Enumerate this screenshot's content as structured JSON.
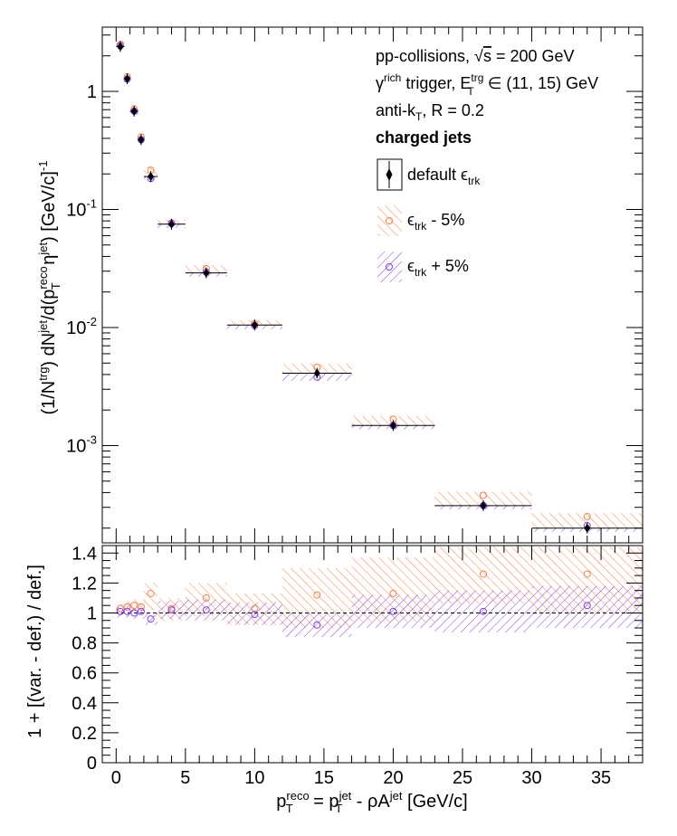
{
  "chart_data": [
    {
      "type": "scatter",
      "panel": "spectrum",
      "ylabel": "(1/N^{trg}) dN^{jet}/d(p_{T}^{reco} η^{jet}) [GeV/c]^{-1}",
      "yscale": "log",
      "ylim": [
        0.00015,
        3.5
      ],
      "xlim": [
        -1,
        38
      ],
      "ytick_labels": [
        "10^{-3}",
        "10^{-2}",
        "10^{-1}",
        "1"
      ],
      "legend_position": "top-right",
      "annotations": [
        "pp-collisions, √s = 200 GeV",
        "γ^{rich} trigger, E_{T}^{trg} ∈ (11, 15) GeV",
        "anti-k_{T}, R = 0.2",
        "charged jets"
      ],
      "series": [
        {
          "name": "default ϵ_{trk}",
          "color": "#000000",
          "marker": "diamond",
          "bins": [
            [
              0,
              0.6
            ],
            [
              0.6,
              1
            ],
            [
              1,
              1.6
            ],
            [
              1.6,
              2
            ],
            [
              2,
              3
            ],
            [
              3,
              5
            ],
            [
              5,
              8
            ],
            [
              8,
              12
            ],
            [
              12,
              17
            ],
            [
              17,
              23
            ],
            [
              23,
              30
            ],
            [
              30,
              38
            ]
          ],
          "x": [
            0.3,
            0.8,
            1.3,
            1.8,
            2.5,
            4,
            6.5,
            10,
            14.5,
            20,
            26.5,
            34
          ],
          "y": [
            2.4,
            1.28,
            0.68,
            0.39,
            0.19,
            0.075,
            0.029,
            0.0105,
            0.0041,
            0.00148,
            0.00031,
            0.0002
          ]
        },
        {
          "name": "ϵ_{trk} - 5%",
          "color": "#ff7f3f",
          "marker": "open-circle",
          "bins": [
            [
              0,
              0.6
            ],
            [
              0.6,
              1
            ],
            [
              1,
              1.6
            ],
            [
              1.6,
              2
            ],
            [
              2,
              3
            ],
            [
              3,
              5
            ],
            [
              5,
              8
            ],
            [
              8,
              12
            ],
            [
              12,
              17
            ],
            [
              17,
              23
            ],
            [
              23,
              30
            ],
            [
              30,
              38
            ]
          ],
          "x": [
            0.3,
            0.8,
            1.3,
            1.8,
            2.5,
            4,
            6.5,
            10,
            14.5,
            20,
            26.5,
            34
          ],
          "y": [
            2.5,
            1.33,
            0.71,
            0.41,
            0.215,
            0.077,
            0.0315,
            0.0108,
            0.0046,
            0.00167,
            0.00038,
            0.00025
          ]
        },
        {
          "name": "ϵ_{trk} + 5%",
          "color": "#7f3fff",
          "marker": "open-circle",
          "bins": [
            [
              0,
              0.6
            ],
            [
              0.6,
              1
            ],
            [
              1,
              1.6
            ],
            [
              1.6,
              2
            ],
            [
              2,
              3
            ],
            [
              3,
              5
            ],
            [
              5,
              8
            ],
            [
              8,
              12
            ],
            [
              12,
              17
            ],
            [
              17,
              23
            ],
            [
              23,
              30
            ],
            [
              30,
              38
            ]
          ],
          "x": [
            0.3,
            0.8,
            1.3,
            1.8,
            2.5,
            4,
            6.5,
            10,
            14.5,
            20,
            26.5,
            34
          ],
          "y": [
            2.43,
            1.27,
            0.68,
            0.39,
            0.183,
            0.076,
            0.0295,
            0.0104,
            0.0038,
            0.00148,
            0.00031,
            0.00021
          ]
        }
      ]
    },
    {
      "type": "scatter",
      "panel": "ratio",
      "xlabel": "p_{T}^{reco} = p_{T}^{jet} - ρA^{jet} [GeV/c]",
      "ylabel": "1 + [(var. - def.) / def.]",
      "xlim": [
        -1,
        38
      ],
      "ylim": [
        0,
        1.45
      ],
      "xticks": [
        0,
        5,
        10,
        15,
        20,
        25,
        30,
        35
      ],
      "yticks": [
        0,
        0.2,
        0.4,
        0.6,
        0.8,
        1,
        1.2,
        1.4
      ],
      "reference_line": 1,
      "series": [
        {
          "name": "ϵ_{trk} - 5%",
          "color": "#ff7f3f",
          "marker": "open-circle",
          "bins": [
            [
              0,
              0.6
            ],
            [
              0.6,
              1
            ],
            [
              1,
              1.6
            ],
            [
              1.6,
              2
            ],
            [
              2,
              3
            ],
            [
              3,
              5
            ],
            [
              5,
              8
            ],
            [
              8,
              12
            ],
            [
              12,
              17
            ],
            [
              17,
              23
            ],
            [
              23,
              30
            ],
            [
              30,
              38
            ]
          ],
          "x": [
            0.3,
            0.8,
            1.3,
            1.8,
            2.5,
            4,
            6.5,
            10,
            14.5,
            20,
            26.5,
            34
          ],
          "y": [
            1.03,
            1.04,
            1.05,
            1.04,
            1.13,
            1.03,
            1.1,
            1.03,
            1.12,
            1.13,
            1.26,
            1.26
          ],
          "band": [
            [
              1.0,
              1.06
            ],
            [
              1.0,
              1.08
            ],
            [
              1.0,
              1.09
            ],
            [
              1.0,
              1.09
            ],
            [
              1.02,
              1.2
            ],
            [
              0.95,
              1.1
            ],
            [
              0.98,
              1.2
            ],
            [
              0.92,
              1.13
            ],
            [
              0.9,
              1.3
            ],
            [
              0.94,
              1.37
            ],
            [
              1.06,
              1.44
            ],
            [
              1.0,
              1.44
            ]
          ]
        },
        {
          "name": "ϵ_{trk} + 5%",
          "color": "#7f3fff",
          "marker": "open-circle",
          "bins": [
            [
              0,
              0.6
            ],
            [
              0.6,
              1
            ],
            [
              1,
              1.6
            ],
            [
              1.6,
              2
            ],
            [
              2,
              3
            ],
            [
              3,
              5
            ],
            [
              5,
              8
            ],
            [
              8,
              12
            ],
            [
              12,
              17
            ],
            [
              17,
              23
            ],
            [
              23,
              30
            ],
            [
              30,
              38
            ]
          ],
          "x": [
            0.3,
            0.8,
            1.3,
            1.8,
            2.5,
            4,
            6.5,
            10,
            14.5,
            20,
            26.5,
            34
          ],
          "y": [
            1.01,
            1.01,
            1.0,
            1.01,
            0.96,
            1.02,
            1.02,
            0.99,
            0.92,
            1.01,
            1.01,
            1.05
          ],
          "band": [
            [
              0.97,
              1.04
            ],
            [
              0.97,
              1.05
            ],
            [
              0.96,
              1.05
            ],
            [
              0.96,
              1.05
            ],
            [
              0.92,
              1.0
            ],
            [
              0.96,
              1.08
            ],
            [
              0.95,
              1.09
            ],
            [
              0.92,
              1.07
            ],
            [
              0.84,
              1.0
            ],
            [
              0.9,
              1.12
            ],
            [
              0.87,
              1.15
            ],
            [
              0.9,
              1.18
            ]
          ]
        }
      ]
    }
  ]
}
